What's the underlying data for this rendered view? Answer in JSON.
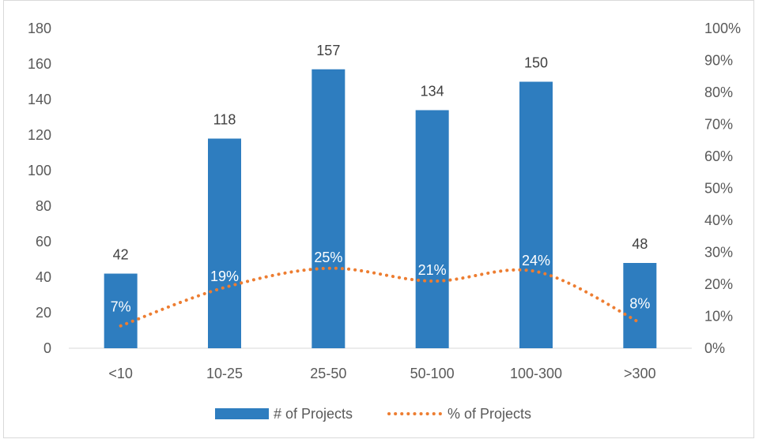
{
  "chart_data": {
    "type": "bar",
    "categories": [
      "<10",
      "10-25",
      "25-50",
      "50-100",
      "100-300",
      ">300"
    ],
    "series": [
      {
        "name": "# of Projects",
        "type": "bar",
        "axis": "left",
        "color": "#2e7dbf",
        "values": [
          42,
          118,
          157,
          134,
          150,
          48
        ],
        "labels": [
          "42",
          "118",
          "157",
          "134",
          "150",
          "48"
        ]
      },
      {
        "name": "% of Projects",
        "type": "line",
        "style": "dotted",
        "axis": "right",
        "color": "#ed7d31",
        "values": [
          7,
          19,
          25,
          21,
          24,
          8
        ],
        "labels": [
          "7%",
          "19%",
          "25%",
          "21%",
          "24%",
          "8%"
        ]
      }
    ],
    "y_left": {
      "min": 0,
      "max": 180,
      "ticks": [
        "0",
        "20",
        "40",
        "60",
        "80",
        "100",
        "120",
        "140",
        "160",
        "180"
      ]
    },
    "y_right": {
      "min": 0,
      "max": 100,
      "ticks": [
        "0%",
        "10%",
        "20%",
        "30%",
        "40%",
        "50%",
        "60%",
        "70%",
        "80%",
        "90%",
        "100%"
      ]
    },
    "grid": false,
    "legend_position": "bottom"
  }
}
